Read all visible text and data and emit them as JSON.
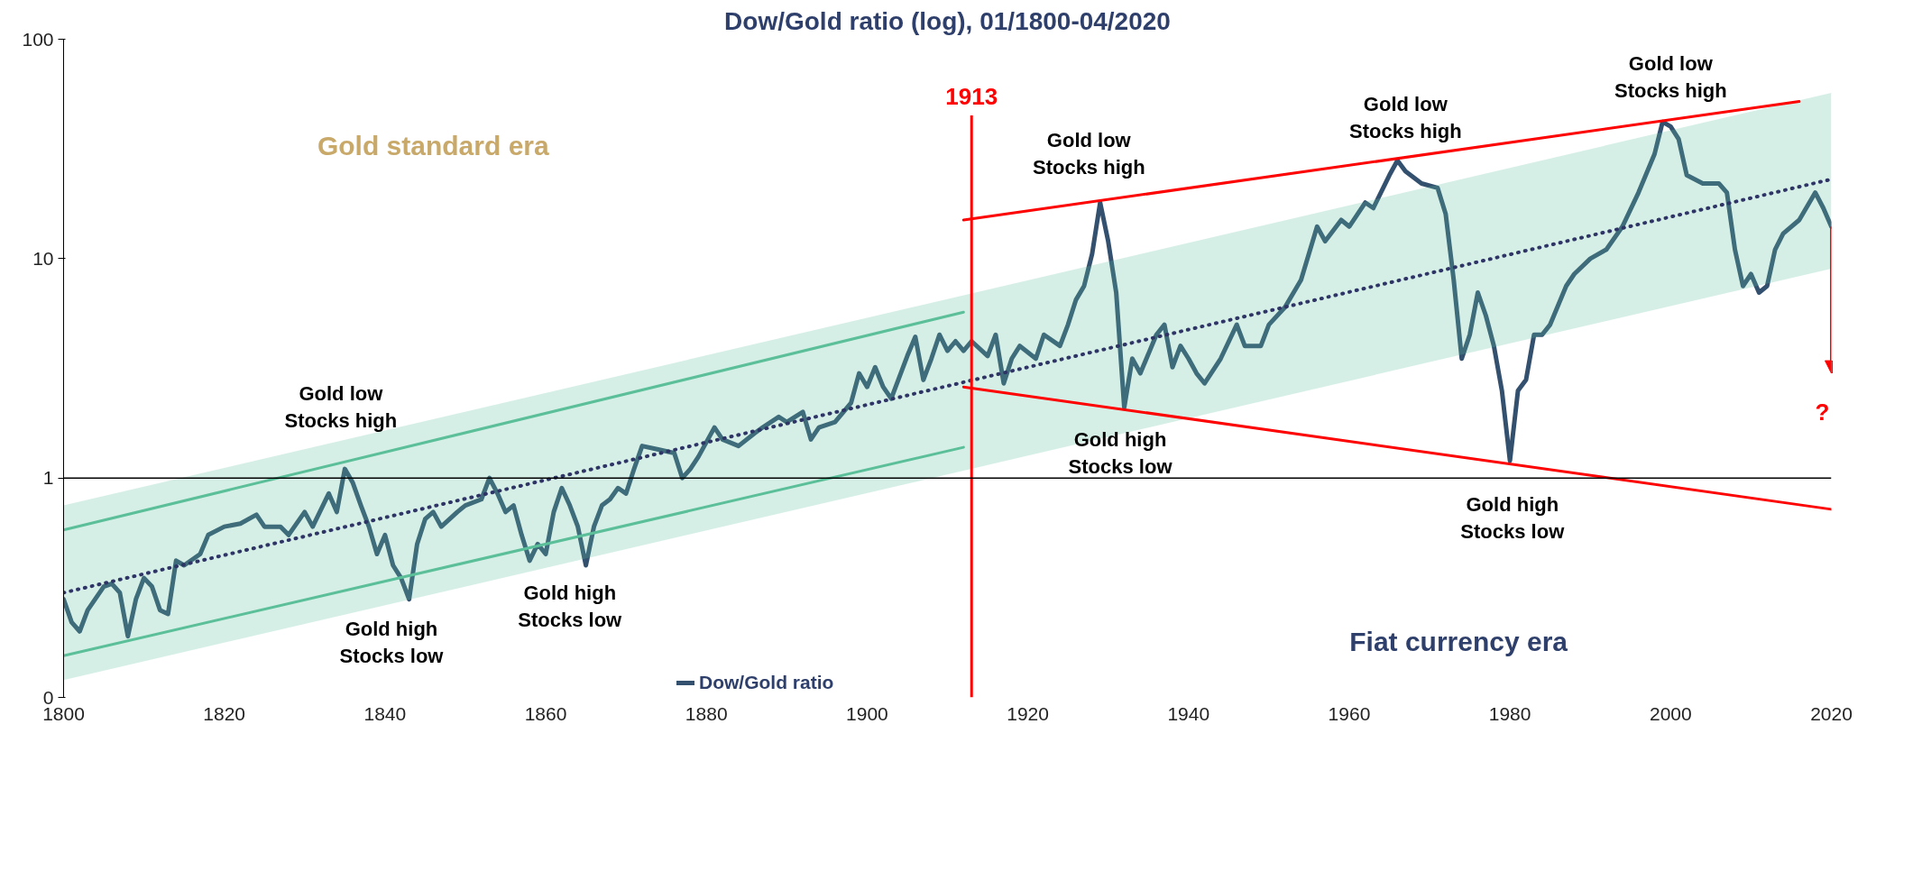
{
  "chart_data": {
    "type": "line",
    "title": "Dow/Gold ratio (log), 01/1800-04/2020",
    "log": "y",
    "xlim": [
      1800,
      2020
    ],
    "ylim": [
      0.1,
      100
    ],
    "xticks": [
      1800,
      1820,
      1840,
      1860,
      1880,
      1900,
      1920,
      1940,
      1960,
      1980,
      2000,
      2020
    ],
    "yticks": [
      {
        "value": 0.1,
        "label": "0"
      },
      1,
      10,
      100
    ],
    "grid": false,
    "legend": "bottom",
    "line_style": "solid",
    "series": [
      {
        "name": "Dow/Gold ratio",
        "color": "#34506f",
        "x": [
          1800,
          1801,
          1802,
          1803,
          1805,
          1806,
          1807,
          1808,
          1809,
          1810,
          1811,
          1812,
          1813,
          1814,
          1815,
          1817,
          1818,
          1820,
          1822,
          1824,
          1825,
          1827,
          1828,
          1830,
          1831,
          1833,
          1834,
          1835,
          1836,
          1837,
          1838,
          1839,
          1840,
          1841,
          1842,
          1843,
          1844,
          1845,
          1846,
          1847,
          1849,
          1850,
          1852,
          1853,
          1854,
          1855,
          1856,
          1857,
          1858,
          1859,
          1860,
          1861,
          1862,
          1863,
          1864,
          1865,
          1866,
          1867,
          1868,
          1869,
          1870,
          1871,
          1872,
          1874,
          1876,
          1877,
          1878,
          1879,
          1881,
          1882,
          1884,
          1886,
          1887,
          1889,
          1890,
          1892,
          1893,
          1894,
          1896,
          1898,
          1899,
          1900,
          1901,
          1902,
          1903,
          1905,
          1906,
          1907,
          1908,
          1909,
          1910,
          1911,
          1912,
          1913,
          1915,
          1916,
          1917,
          1918,
          1919,
          1921,
          1922,
          1924,
          1925,
          1926,
          1927,
          1928,
          1929,
          1930,
          1931,
          1932,
          1933,
          1934,
          1936,
          1937,
          1938,
          1939,
          1940,
          1941,
          1942,
          1944,
          1946,
          1947,
          1949,
          1950,
          1952,
          1954,
          1956,
          1957,
          1959,
          1960,
          1962,
          1963,
          1965,
          1966,
          1967,
          1969,
          1971,
          1972,
          1973,
          1974,
          1975,
          1976,
          1977,
          1978,
          1979,
          1980,
          1981,
          1982,
          1983,
          1984,
          1985,
          1987,
          1988,
          1990,
          1992,
          1994,
          1996,
          1998,
          1999,
          2000,
          2001,
          2002,
          2004,
          2006,
          2007,
          2008,
          2009,
          2010,
          2011,
          2012,
          2013,
          2014,
          2016,
          2018,
          2019,
          2020
        ],
        "values": [
          0.28,
          0.22,
          0.2,
          0.25,
          0.32,
          0.33,
          0.3,
          0.19,
          0.28,
          0.35,
          0.32,
          0.25,
          0.24,
          0.42,
          0.4,
          0.45,
          0.55,
          0.6,
          0.62,
          0.68,
          0.6,
          0.6,
          0.55,
          0.7,
          0.6,
          0.85,
          0.7,
          1.1,
          0.95,
          0.75,
          0.6,
          0.45,
          0.55,
          0.4,
          0.35,
          0.28,
          0.5,
          0.65,
          0.7,
          0.6,
          0.7,
          0.75,
          0.8,
          1.0,
          0.85,
          0.7,
          0.75,
          0.55,
          0.42,
          0.5,
          0.45,
          0.7,
          0.9,
          0.75,
          0.6,
          0.4,
          0.6,
          0.75,
          0.8,
          0.9,
          0.85,
          1.1,
          1.4,
          1.35,
          1.3,
          1.0,
          1.1,
          1.25,
          1.7,
          1.5,
          1.4,
          1.6,
          1.7,
          1.9,
          1.8,
          2.0,
          1.5,
          1.7,
          1.8,
          2.2,
          3.0,
          2.6,
          3.2,
          2.6,
          2.3,
          3.6,
          4.4,
          2.8,
          3.5,
          4.5,
          3.8,
          4.2,
          3.8,
          4.2,
          3.6,
          4.5,
          2.7,
          3.5,
          4.0,
          3.5,
          4.5,
          4.0,
          5.0,
          6.5,
          7.5,
          10.5,
          18,
          12,
          7,
          2.1,
          3.5,
          3.0,
          4.5,
          5.0,
          3.2,
          4.0,
          3.5,
          3.0,
          2.7,
          3.5,
          5.0,
          4.0,
          4.0,
          5.0,
          6.0,
          8.0,
          14,
          12,
          15,
          14,
          18,
          17,
          24,
          28,
          25,
          22,
          21,
          16,
          8,
          3.5,
          4.5,
          7,
          5.5,
          4,
          2.5,
          1.2,
          2.5,
          2.8,
          4.5,
          4.5,
          5.0,
          7.5,
          8.5,
          10,
          11,
          14,
          20,
          30,
          42,
          40,
          35,
          24,
          22,
          22,
          20,
          11,
          7.5,
          8.5,
          7,
          7.5,
          11,
          13,
          15,
          20,
          17,
          14
        ]
      },
      {
        "type": "line",
        "color": "#2e3566",
        "line_style": "dotted",
        "x": [
          1800,
          2020
        ],
        "values": [
          0.3,
          23
        ],
        "lower": [
          0.12,
          9
        ],
        "upper": [
          0.75,
          57
        ]
      },
      {
        "type": "line",
        "color": "#5bbf9a",
        "x": [
          1800,
          1912
        ],
        "values": [
          0.58,
          5.7
        ]
      },
      {
        "type": "line",
        "color": "#5bbf9a",
        "x": [
          1800,
          1912
        ],
        "values": [
          0.155,
          1.38
        ]
      },
      {
        "type": "line",
        "color": "#ff0000",
        "x": [
          1912,
          2016
        ],
        "values": [
          15,
          52
        ]
      },
      {
        "type": "line",
        "color": "#ff0000",
        "x": [
          1912,
          2020
        ],
        "values": [
          2.6,
          0.72
        ]
      }
    ],
    "ref_lines": [
      {
        "axis": "x",
        "value": 1913,
        "label": "1913",
        "color": "#ff0000"
      },
      {
        "axis": "y",
        "value": 1,
        "color": "#000000"
      }
    ],
    "annotations": [
      "Gold low\nStocks high",
      "Gold high\nStocks low",
      "Gold high\nStocks low",
      "Gold low\nStocks high",
      "Gold high\nStocks low",
      "Gold low\nStocks high",
      "Gold high\nStocks low",
      "Gold low\nStocks high",
      "Gold standard era",
      "Fiat currency era",
      "?"
    ]
  }
}
